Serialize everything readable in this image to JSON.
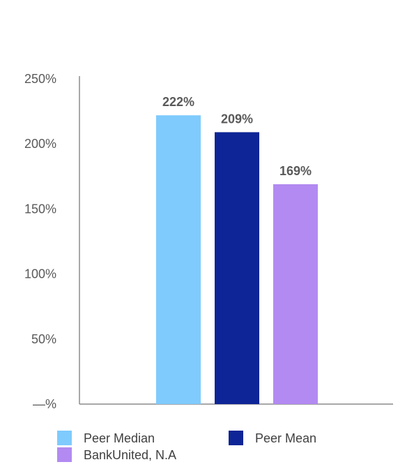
{
  "chart_data": {
    "type": "bar",
    "categories": [
      "Peer Median",
      "Peer Mean",
      "BankUnited, N.A"
    ],
    "values": [
      222,
      209,
      169
    ],
    "value_labels": [
      "222%",
      "209%",
      "169%"
    ],
    "colors": [
      "#7fcbfd",
      "#0d2596",
      "#b28af1"
    ],
    "ylim": [
      0,
      250
    ],
    "yticks": [
      0,
      50,
      100,
      150,
      200,
      250
    ],
    "ytick_labels": [
      "—%",
      "50%",
      "100%",
      "150%",
      "200%",
      "250%"
    ],
    "grid": false,
    "legend": {
      "position": "bottom",
      "entries": [
        "Peer Median",
        "Peer Mean",
        "BankUnited, N.A"
      ]
    }
  }
}
